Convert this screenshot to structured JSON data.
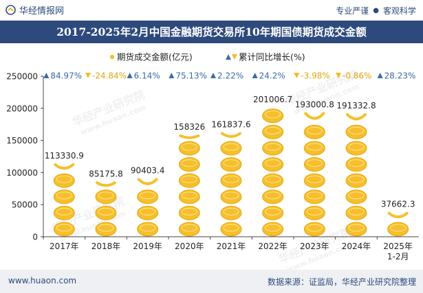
{
  "header": {
    "logo_text": "华经情报网",
    "slogan_left": "专业严谨",
    "slogan_separator": "●",
    "slogan_right": "客观科学"
  },
  "title": "2017-2025年2月中国金融期货交易所10年期国债期货成交金额",
  "footer": {
    "url": "www.huaon.com",
    "source": "数据来源：证监局，华经产业研究院整理"
  },
  "watermark": "华经产业研究院\nwww.huaon.com",
  "colors": {
    "coin": "#f6bf2b",
    "coin_edge": "#e8a812",
    "up_arrow": "#3a6aa8",
    "down_arrow": "#f2bd1b",
    "title_band": "#2e4a7d",
    "axis_text": "#222222"
  },
  "chart_data": {
    "type": "bar",
    "categories": [
      "2017年",
      "2018年",
      "2019年",
      "2020年",
      "2021年",
      "2022年",
      "2023年",
      "2024年",
      "2025年\n1-2月"
    ],
    "series": [
      {
        "name": "期货成交金额(亿元)",
        "values": [
          113330.9,
          85175.8,
          90403.4,
          158326,
          161837.6,
          201006.7,
          193000.8,
          191332.8,
          37662.3
        ],
        "labels": [
          "113330.9",
          "85175.8",
          "90403.4",
          "158326",
          "161837.6",
          "201006.7",
          "193000.8",
          "191332.8",
          "37662.3"
        ]
      },
      {
        "name": "累计同比增长(%)",
        "values": [
          84.97,
          -24.84,
          6.14,
          75.13,
          2.22,
          24.2,
          -3.98,
          -0.86,
          28.23
        ],
        "labels": [
          "84.97%",
          "-24.84%",
          "6.14%",
          "75.13%",
          "2.22%",
          "24.2%",
          "-3.98%",
          "-0.86%",
          "28.23%"
        ]
      }
    ],
    "legend": [
      "期货成交金额(亿元)",
      "累计同比增长(%)"
    ],
    "legend_position": "top-center",
    "ylim": [
      0,
      250000
    ],
    "yticks": [
      "0",
      "50000",
      "100000",
      "150000",
      "200000",
      "250000"
    ],
    "grid": false
  }
}
